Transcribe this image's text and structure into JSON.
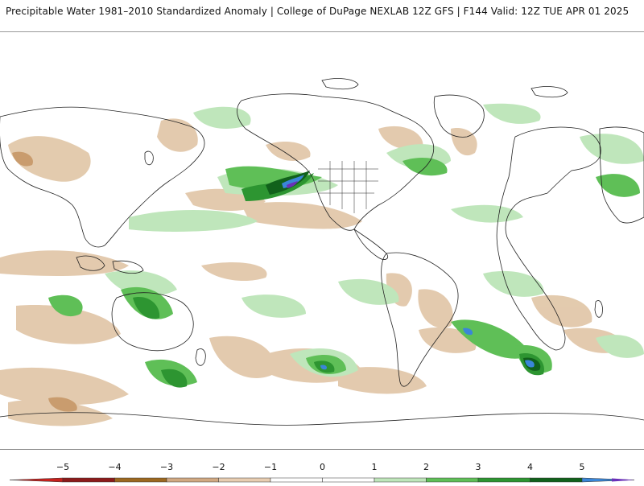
{
  "header": {
    "title": "Precipitable Water 1981–2010 Standardized Anomaly | College of DuPage NEXLAB   12Z GFS | F144 Valid: 12Z TUE APR 01 2025"
  },
  "legend": {
    "ticks": [
      "−5",
      "−4",
      "−3",
      "−2",
      "−1",
      "0",
      "1",
      "2",
      "3",
      "4",
      "5"
    ],
    "colors": {
      "neg_extreme": "#c8201c",
      "neg_4": "#8c1a1a",
      "neg_3": "#9c6820",
      "neg_2": "#d1a982",
      "neg_1": "#e8cdb1",
      "zero": "#ffffff",
      "pos_1": "#bfe6bb",
      "pos_2": "#5fbf57",
      "pos_3": "#2d9531",
      "pos_4": "#11611b",
      "pos_5": "#3a86d8",
      "pos_extreme": "#6a30b8"
    }
  },
  "map": {
    "projection": "global equirectangular",
    "coastline_color": "#222222"
  }
}
